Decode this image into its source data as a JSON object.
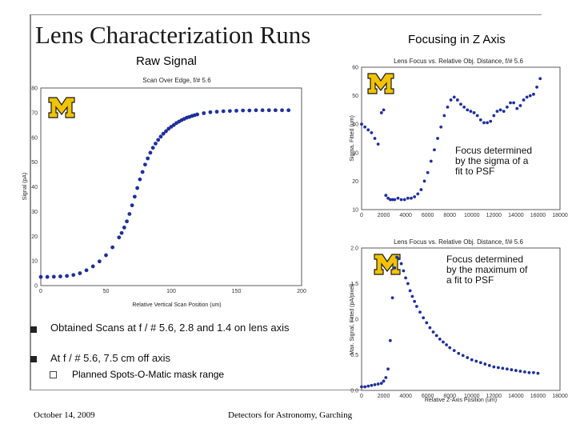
{
  "slide": {
    "title": "Lens Characterization Runs",
    "subtitle_right": "Focusing in Z Axis",
    "raw_signal_label": "Raw Signal",
    "bullets": [
      "Obtained Scans at f / # 5.6, 2.8 and 1.4 on lens axis",
      "At f / # 5.6, 7.5 cm off axis"
    ],
    "sub_bullet": "Planned Spots-O-Matic mask range",
    "footer_date": "October 14, 2009",
    "footer_event": "Detectors for Astronomy, Garching",
    "logo_letter": "M",
    "colors": {
      "logo_fill": "#f2c300",
      "marker": "#1f2f9a",
      "frame": "#8f8f8f"
    }
  },
  "chart_data": [
    {
      "type": "scatter",
      "title": "Scan Over Edge, f/# 5.6",
      "xlabel": "Relative Vertical Scan Position (um)",
      "ylabel": "Signal (pA)",
      "xlim": [
        0,
        200
      ],
      "ylim": [
        0,
        80
      ],
      "xticks": [
        "0",
        "50",
        "100",
        "150",
        "200"
      ],
      "yticks": [
        "0",
        "10",
        "20",
        "30",
        "40",
        "50",
        "60",
        "70",
        "80"
      ],
      "logo": "M",
      "x": [
        0,
        5,
        10,
        15,
        20,
        25,
        30,
        35,
        40,
        45,
        50,
        55,
        60,
        62,
        64,
        66,
        68,
        70,
        72,
        74,
        76,
        78,
        80,
        82,
        84,
        86,
        88,
        90,
        92,
        94,
        96,
        98,
        100,
        102,
        104,
        106,
        108,
        110,
        112,
        114,
        116,
        118,
        120,
        125,
        130,
        135,
        140,
        145,
        150,
        155,
        160,
        165,
        170,
        175,
        180,
        185,
        190
      ],
      "y": [
        3.5,
        3.5,
        3.6,
        3.7,
        3.9,
        4.3,
        5.0,
        6.2,
        7.8,
        9.8,
        12.3,
        15.5,
        19.5,
        21.3,
        23.5,
        26.0,
        29.0,
        32.5,
        36.0,
        39.5,
        43.0,
        46.0,
        49.0,
        51.5,
        53.8,
        55.8,
        57.5,
        59.0,
        60.3,
        61.5,
        62.5,
        63.5,
        64.3,
        65.0,
        65.8,
        66.4,
        67.0,
        67.5,
        68.0,
        68.3,
        68.7,
        69.0,
        69.3,
        69.8,
        70.2,
        70.4,
        70.6,
        70.7,
        70.8,
        70.9,
        70.9,
        71.0,
        71.0,
        71.0,
        71.0,
        71.0,
        71.0
      ]
    },
    {
      "type": "scatter",
      "title": "Lens Focus vs. Relative Obj. Distance, f/# 5.6",
      "xlabel": "Relative Z-Axis Position (um)",
      "ylabel": "Sigma, Fitted (um)",
      "xlim": [
        0,
        18000
      ],
      "ylim": [
        10,
        60
      ],
      "xticks": [
        "0",
        "2000",
        "4000",
        "6000",
        "8000",
        "10000",
        "12000",
        "14000",
        "16000",
        "18000"
      ],
      "yticks": [
        "10",
        "20",
        "30",
        "40",
        "50",
        "60"
      ],
      "annotation": "Focus determined by the sigma of a fit to PSF",
      "logo": "M",
      "x": [
        0,
        300,
        600,
        900,
        1200,
        1500,
        1800,
        2000,
        2200,
        2400,
        2600,
        2800,
        3000,
        3300,
        3600,
        3900,
        4200,
        4500,
        4800,
        5100,
        5400,
        5700,
        6000,
        6300,
        6600,
        6900,
        7200,
        7500,
        7800,
        8100,
        8400,
        8700,
        9000,
        9300,
        9600,
        9900,
        10200,
        10500,
        10800,
        11100,
        11400,
        11700,
        12000,
        12300,
        12600,
        12900,
        13200,
        13500,
        13800,
        14100,
        14400,
        14700,
        15000,
        15300,
        15600,
        15900,
        16200
      ],
      "y": [
        40,
        39,
        38,
        37,
        35,
        33,
        44,
        45,
        15,
        14,
        13.5,
        13.5,
        13.5,
        14,
        13.5,
        13.5,
        14,
        14,
        14.5,
        15.5,
        17,
        20,
        23,
        27,
        31,
        35,
        39,
        43,
        46,
        48.5,
        49.5,
        48.5,
        47,
        46,
        45,
        44.5,
        44,
        43,
        41.5,
        40.5,
        40.5,
        41,
        43,
        44.5,
        45,
        44.5,
        46,
        47.5,
        47.5,
        45.5,
        46.5,
        48.5,
        49.5,
        50,
        50.5,
        53,
        56
      ]
    },
    {
      "type": "scatter",
      "title": "Lens Focus vs. Relative Obj. Distance, f/# 5.6",
      "xlabel": "Relative Z-Axis Position (um)",
      "ylabel": "Max. Signal, Fitted (pA/pixel)",
      "xlim": [
        0,
        18000
      ],
      "ylim": [
        0,
        2.0
      ],
      "xticks": [
        "0",
        "2000",
        "4000",
        "6000",
        "8000",
        "10000",
        "12000",
        "14000",
        "16000",
        "18000"
      ],
      "yticks": [
        "0.0",
        "0.5",
        "1.0",
        "1.5",
        "2.0"
      ],
      "annotation": "Focus determined by the maximum of a fit to PSF",
      "logo": "M",
      "x": [
        0,
        300,
        600,
        900,
        1200,
        1500,
        1800,
        2000,
        2200,
        2400,
        2600,
        2800,
        3000,
        3200,
        3400,
        3600,
        3800,
        4000,
        4200,
        4400,
        4600,
        4800,
        5000,
        5300,
        5600,
        5900,
        6200,
        6500,
        6800,
        7100,
        7400,
        7700,
        8000,
        8400,
        8800,
        9200,
        9600,
        10000,
        10400,
        10800,
        11200,
        11600,
        12000,
        12400,
        12800,
        13200,
        13600,
        14000,
        14400,
        14800,
        15200,
        15600,
        16000
      ],
      "y": [
        0.05,
        0.05,
        0.06,
        0.07,
        0.08,
        0.09,
        0.1,
        0.13,
        0.18,
        0.3,
        0.7,
        1.3,
        1.72,
        1.87,
        1.85,
        1.78,
        1.68,
        1.58,
        1.5,
        1.4,
        1.32,
        1.25,
        1.18,
        1.1,
        1.02,
        0.95,
        0.88,
        0.82,
        0.77,
        0.72,
        0.68,
        0.64,
        0.6,
        0.56,
        0.52,
        0.49,
        0.46,
        0.43,
        0.41,
        0.39,
        0.37,
        0.35,
        0.33,
        0.32,
        0.31,
        0.3,
        0.29,
        0.28,
        0.27,
        0.26,
        0.25,
        0.25,
        0.24
      ]
    }
  ]
}
